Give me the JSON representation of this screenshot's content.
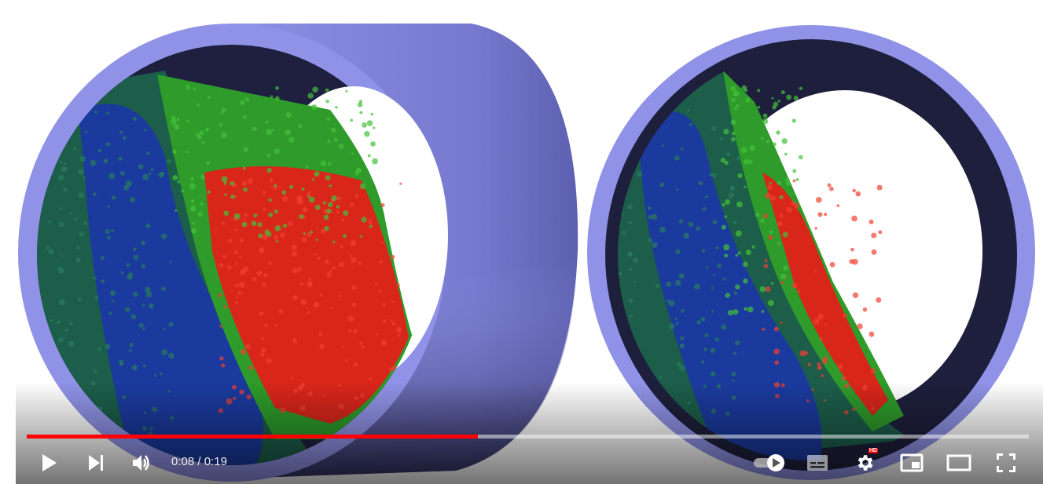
{
  "player": {
    "current_time": "0:08",
    "duration": "0:19",
    "time_separator": " / ",
    "progress_fraction": 0.45,
    "progress_color": "#ff0000",
    "hd_badge": "HD",
    "controls": {
      "play": "play-icon",
      "next": "next-icon",
      "volume": "volume-icon",
      "autoplay": "autoplay-toggle-icon",
      "subtitles": "subtitles-icon",
      "settings": "gear-icon",
      "miniplayer": "miniplayer-icon",
      "theater": "theater-icon",
      "fullscreen": "fullscreen-icon"
    }
  },
  "scene_colors": {
    "cylinder": "#8f92e6",
    "interior": "#20213f",
    "blue_particles": "#1b3fa8",
    "teal_particles": "#1c5e4a",
    "green_particles": "#2fa82a",
    "red_particles": "#e0261a"
  }
}
